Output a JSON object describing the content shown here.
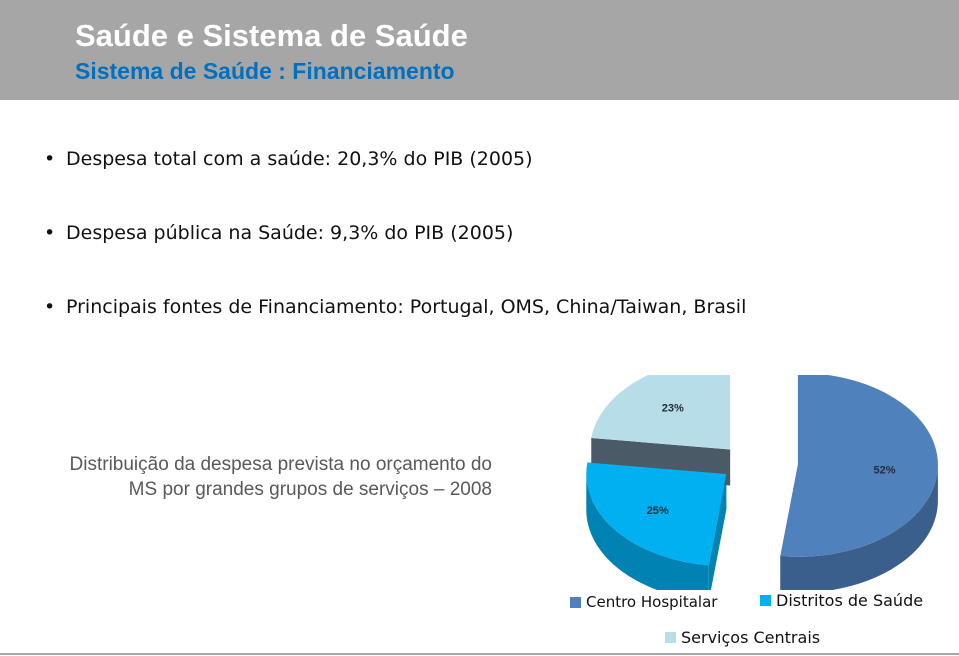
{
  "header": {
    "title": "Saúde e Sistema de Saúde",
    "subtitle": "Sistema de Saúde : Financiamento"
  },
  "bullets": [
    "Despesa total com a saúde: 20,3% do PIB (2005)",
    "Despesa pública na Saúde: 9,3% do PIB (2005)",
    "Principais fontes de Financiamento: Portugal, OMS, China/Taiwan, Brasil"
  ],
  "caption": "Distribuição da despesa prevista no orçamento do MS por grandes grupos de serviços – 2008",
  "colors": {
    "header_bg": "#a6a6a6",
    "title": "#ffffff",
    "subtitle": "#0070c0"
  },
  "chart_data": {
    "type": "pie",
    "style": "3d-exploded",
    "categories": [
      "Centro Hospitalar",
      "Distritos de Saúde",
      "Serviços Centrais"
    ],
    "values": [
      52,
      25,
      23
    ],
    "data_labels": [
      "52%",
      "25%",
      "23%"
    ],
    "colors": [
      "#4f81bd",
      "#00b0f0",
      "#b7dde8"
    ],
    "side_colors": [
      "#3a5f8c",
      "#0082b3",
      "#4a5a66"
    ],
    "legend": [
      {
        "label": "Centro Hospitalar",
        "color": "#4f81bd"
      },
      {
        "label": "Distritos de Saúde",
        "color": "#00b0f0"
      },
      {
        "label": "Serviços Centrais",
        "color": "#b7dde8"
      }
    ],
    "legend_position": "bottom"
  }
}
